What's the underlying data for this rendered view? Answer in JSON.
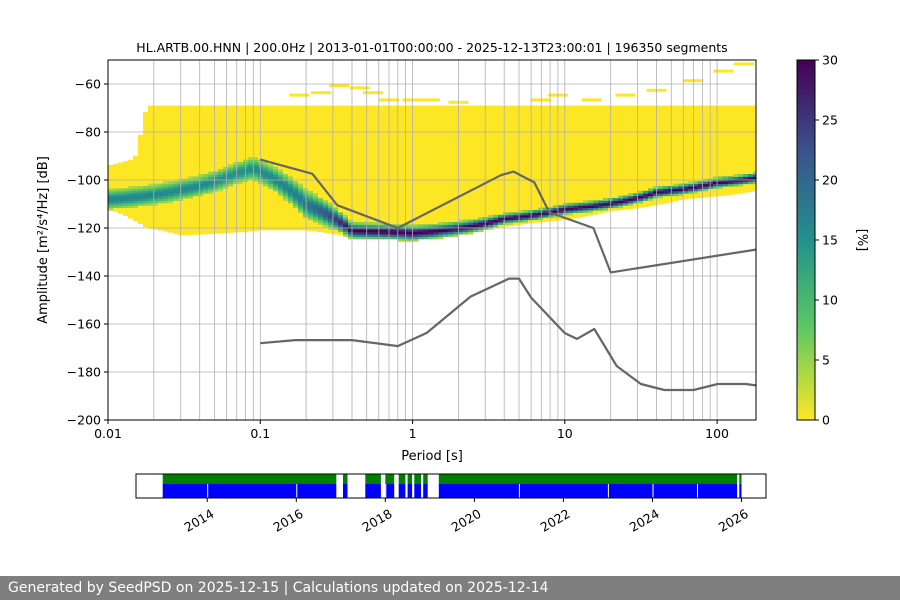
{
  "chart_data": {
    "type": "heatmap",
    "title": "HL.ARTB.00.HNN | 200.0Hz | 2013-01-01T00:00:00 - 2025-12-13T23:00:01 | 196350 segments",
    "xlabel": "Period [s]",
    "ylabel": "Amplitude [m²/s⁴/Hz] [dB]",
    "x_scale": "log",
    "xlim": [
      0.01,
      180
    ],
    "ylim": [
      -200,
      -50
    ],
    "x_ticks": [
      {
        "value": 0.01,
        "label": "0.01"
      },
      {
        "value": 0.1,
        "label": "0.1"
      },
      {
        "value": 1,
        "label": "1"
      },
      {
        "value": 10,
        "label": "10"
      },
      {
        "value": 100,
        "label": "100"
      }
    ],
    "y_ticks": [
      {
        "value": -60,
        "label": "−60"
      },
      {
        "value": -80,
        "label": "−80"
      },
      {
        "value": -100,
        "label": "−100"
      },
      {
        "value": -120,
        "label": "−120"
      },
      {
        "value": -140,
        "label": "−140"
      },
      {
        "value": -160,
        "label": "−160"
      },
      {
        "value": -180,
        "label": "−180"
      },
      {
        "value": -200,
        "label": "−200"
      }
    ],
    "grid": true,
    "colorbar": {
      "label": "[%]",
      "range": [
        0,
        30
      ],
      "ticks": [
        "0",
        "5",
        "10",
        "15",
        "20",
        "25",
        "30"
      ],
      "colormap_stops": [
        "#fde725",
        "#5ec962",
        "#21918c",
        "#3b528b",
        "#440154"
      ]
    },
    "series": [
      {
        "name": "new-high-noise-model",
        "color": "#666666",
        "points": [
          [
            0.1,
            -91.5
          ],
          [
            0.22,
            -97.4
          ],
          [
            0.32,
            -110.5
          ],
          [
            0.8,
            -120.0
          ],
          [
            3.8,
            -98.0
          ],
          [
            4.6,
            -96.5
          ],
          [
            6.3,
            -101.0
          ],
          [
            7.9,
            -113.5
          ],
          [
            15.4,
            -120.0
          ],
          [
            20.0,
            -138.5
          ],
          [
            180,
            -129.0
          ]
        ]
      },
      {
        "name": "new-low-noise-model",
        "color": "#666666",
        "points": [
          [
            0.1,
            -168.0
          ],
          [
            0.17,
            -166.7
          ],
          [
            0.4,
            -166.7
          ],
          [
            0.8,
            -169.2
          ],
          [
            1.24,
            -163.7
          ],
          [
            2.4,
            -148.6
          ],
          [
            4.3,
            -141.1
          ],
          [
            5.0,
            -141.1
          ],
          [
            6.0,
            -149.0
          ],
          [
            10.0,
            -163.8
          ],
          [
            12.0,
            -166.2
          ],
          [
            15.6,
            -162.1
          ],
          [
            21.9,
            -177.5
          ],
          [
            31.6,
            -185.0
          ],
          [
            45.0,
            -187.5
          ],
          [
            70.0,
            -187.5
          ],
          [
            101.0,
            -185.0
          ],
          [
            154.0,
            -185.0
          ],
          [
            180,
            -185.6
          ]
        ]
      }
    ]
  },
  "timeline": {
    "range": [
      2012.4,
      2026.55
    ],
    "year_ticks": [
      "2014",
      "2016",
      "2018",
      "2020",
      "2022",
      "2024",
      "2026"
    ],
    "row_colors": [
      "#008000",
      "#0000ff"
    ],
    "segments": [
      [
        2013.0,
        2016.9
      ],
      [
        2017.05,
        2017.15
      ],
      [
        2017.55,
        2017.9
      ],
      [
        2018.0,
        2018.2
      ],
      [
        2018.3,
        2018.45
      ],
      [
        2018.5,
        2018.6
      ],
      [
        2018.65,
        2018.8
      ],
      [
        2018.85,
        2018.95
      ],
      [
        2019.2,
        2025.9
      ],
      [
        2025.95,
        2026.0
      ]
    ],
    "blue_gaps": [
      2014.0,
      2016.0,
      2018.0,
      2021.0,
      2023.0,
      2024.0,
      2025.0
    ]
  },
  "footer": {
    "text": "Generated by SeedPSD on 2025-12-15 | Calculations updated on 2025-12-14"
  }
}
